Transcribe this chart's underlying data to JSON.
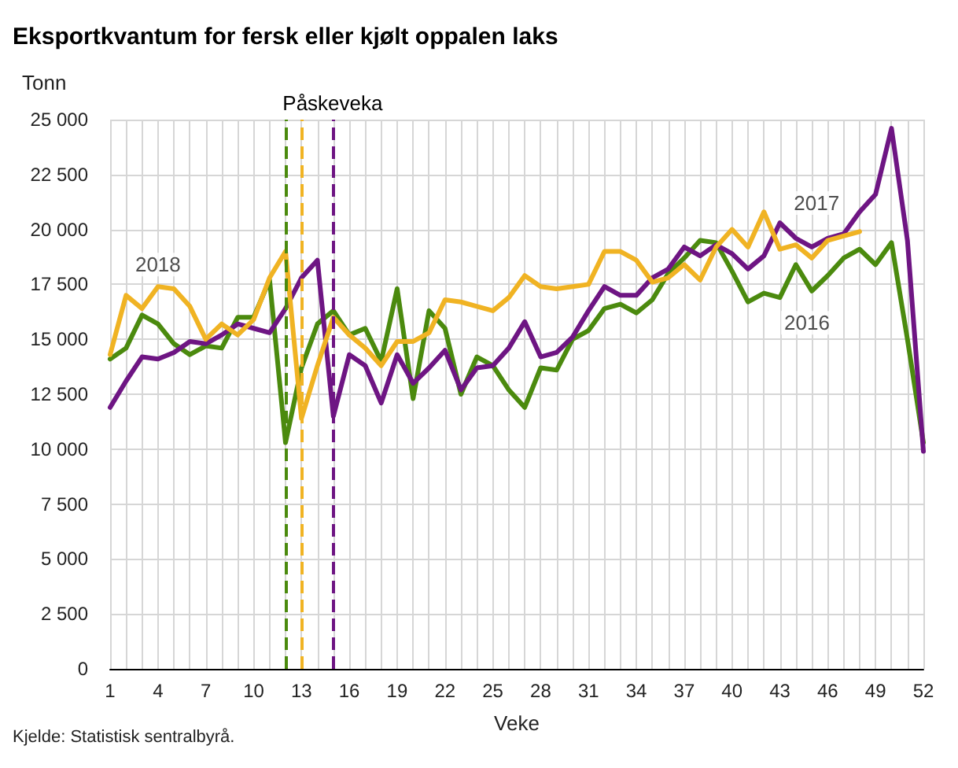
{
  "chart_data": {
    "type": "line",
    "title": "Eksportkvantum for fersk eller kjølt oppalen laks",
    "ylabel": "Tonn",
    "xlabel": "Veke",
    "x": [
      1,
      2,
      3,
      4,
      5,
      6,
      7,
      8,
      9,
      10,
      11,
      12,
      13,
      14,
      15,
      16,
      17,
      18,
      19,
      20,
      21,
      22,
      23,
      24,
      25,
      26,
      27,
      28,
      29,
      30,
      31,
      32,
      33,
      34,
      35,
      36,
      37,
      38,
      39,
      40,
      41,
      42,
      43,
      44,
      45,
      46,
      47,
      48,
      49,
      50,
      51,
      52
    ],
    "series": [
      {
        "color": "#4b8a0e",
        "values": [
          14100,
          14600,
          16100,
          15700,
          14800,
          14300,
          14700,
          14600,
          16000,
          16000,
          17700,
          10300,
          13700,
          15700,
          16300,
          15200,
          15500,
          14000,
          17300,
          12300,
          16300,
          15500,
          12500,
          14200,
          13800,
          12700,
          11900,
          13700,
          13600,
          15000,
          15400,
          16400,
          16600,
          16200,
          16800,
          18000,
          18700,
          19500,
          19400,
          18100,
          16700,
          17100,
          16900,
          18400,
          17200,
          17900,
          18700,
          19100,
          18400,
          19400,
          15000,
          10300
        ]
      },
      {
        "color": "#6e1583",
        "values": [
          11900,
          13100,
          14200,
          14100,
          14400,
          14900,
          14800,
          15200,
          15700,
          15500,
          15300,
          16400,
          17800,
          18600,
          11500,
          14300,
          13800,
          12100,
          14300,
          13000,
          13700,
          14500,
          12700,
          13700,
          13800,
          14600,
          15800,
          14200,
          14400,
          15100,
          16300,
          17400,
          17000,
          17000,
          17800,
          18200,
          19200,
          18800,
          19300,
          18900,
          18200,
          18800,
          20300,
          19600,
          19200,
          19600,
          19800,
          20800,
          21600,
          24600,
          19500,
          9900
        ]
      },
      {
        "color": "#f0b323",
        "values": [
          14300,
          17000,
          16400,
          17400,
          17300,
          16500,
          15000,
          15700,
          15200,
          15900,
          17800,
          19000,
          11400,
          13800,
          16000,
          15200,
          14600,
          13800,
          14900,
          14900,
          15300,
          16800,
          16700,
          16500,
          16300,
          16900,
          17900,
          17400,
          17300,
          17400,
          17500,
          19000,
          19000,
          18600,
          17600,
          17800,
          18400,
          17700,
          19200,
          20000,
          19200,
          20800,
          19100,
          19300,
          18700,
          19500,
          19700,
          19900,
          null,
          null,
          null,
          null
        ]
      }
    ],
    "xlim": [
      1,
      52
    ],
    "xticks": [
      1,
      {
        "value": 2,
        "label": null
      },
      {
        "value": 3,
        "label": null
      },
      4,
      {
        "value": 5,
        "label": null
      },
      {
        "value": 6,
        "label": null
      },
      7,
      {
        "value": 8,
        "label": null
      },
      {
        "value": 9,
        "label": null
      },
      10,
      {
        "value": 11,
        "label": null
      },
      {
        "value": 12,
        "label": null
      },
      13,
      {
        "value": 14,
        "label": null
      },
      {
        "value": 15,
        "label": null
      },
      16,
      {
        "value": 17,
        "label": null
      },
      {
        "value": 18,
        "label": null
      },
      19,
      {
        "value": 20,
        "label": null
      },
      {
        "value": 21,
        "label": null
      },
      22,
      {
        "value": 23,
        "label": null
      },
      {
        "value": 24,
        "label": null
      },
      25,
      {
        "value": 26,
        "label": null
      },
      {
        "value": 27,
        "label": null
      },
      28,
      {
        "value": 29,
        "label": null
      },
      {
        "value": 30,
        "label": null
      },
      31,
      {
        "value": 32,
        "label": null
      },
      {
        "value": 33,
        "label": null
      },
      34,
      {
        "value": 35,
        "label": null
      },
      {
        "value": 36,
        "label": null
      },
      37,
      {
        "value": 38,
        "label": null
      },
      {
        "value": 39,
        "label": null
      },
      40,
      {
        "value": 41,
        "label": null
      },
      {
        "value": 42,
        "label": null
      },
      43,
      {
        "value": 44,
        "label": null
      },
      {
        "value": 45,
        "label": null
      },
      46,
      {
        "value": 47,
        "label": null
      },
      {
        "value": 48,
        "label": null
      },
      49,
      {
        "value": 50,
        "label": null
      },
      {
        "value": 51,
        "label": null
      },
      52
    ],
    "ylim": [
      0,
      25000
    ],
    "yticks": [
      0,
      {
        "value": 2500,
        "label": "2 500"
      },
      {
        "value": 5000,
        "label": "5 000"
      },
      {
        "value": 7500,
        "label": "7 500"
      },
      {
        "value": 10000,
        "label": "10 000"
      },
      {
        "value": 12500,
        "label": "12 500"
      },
      {
        "value": 15000,
        "label": "15 000"
      },
      {
        "value": 17500,
        "label": "17 500"
      },
      {
        "value": 20000,
        "label": "20 000"
      },
      {
        "value": 22500,
        "label": "22 500"
      },
      {
        "value": 25000,
        "label": "25 000"
      }
    ],
    "grid": true,
    "marker": "none",
    "line_style": "solid",
    "ref_lines": [
      {
        "axis": "x",
        "value": 12,
        "color": "#4b8a0e",
        "line_style": "dashed"
      },
      {
        "axis": "x",
        "value": 13,
        "color": "#f0b323",
        "line_style": "dashed",
        "label": "Påskeveka"
      },
      {
        "axis": "x",
        "value": 15,
        "color": "#6e1583",
        "line_style": "dashed"
      }
    ],
    "annotations": [
      {
        "text": "2018",
        "x": 4,
        "y": 18400
      },
      {
        "text": "2017",
        "x": 45.3,
        "y": 21200
      },
      {
        "text": "2016",
        "x": 44.7,
        "y": 15750
      },
      "Kjelde: Statistisk sentralbyrå."
    ]
  }
}
